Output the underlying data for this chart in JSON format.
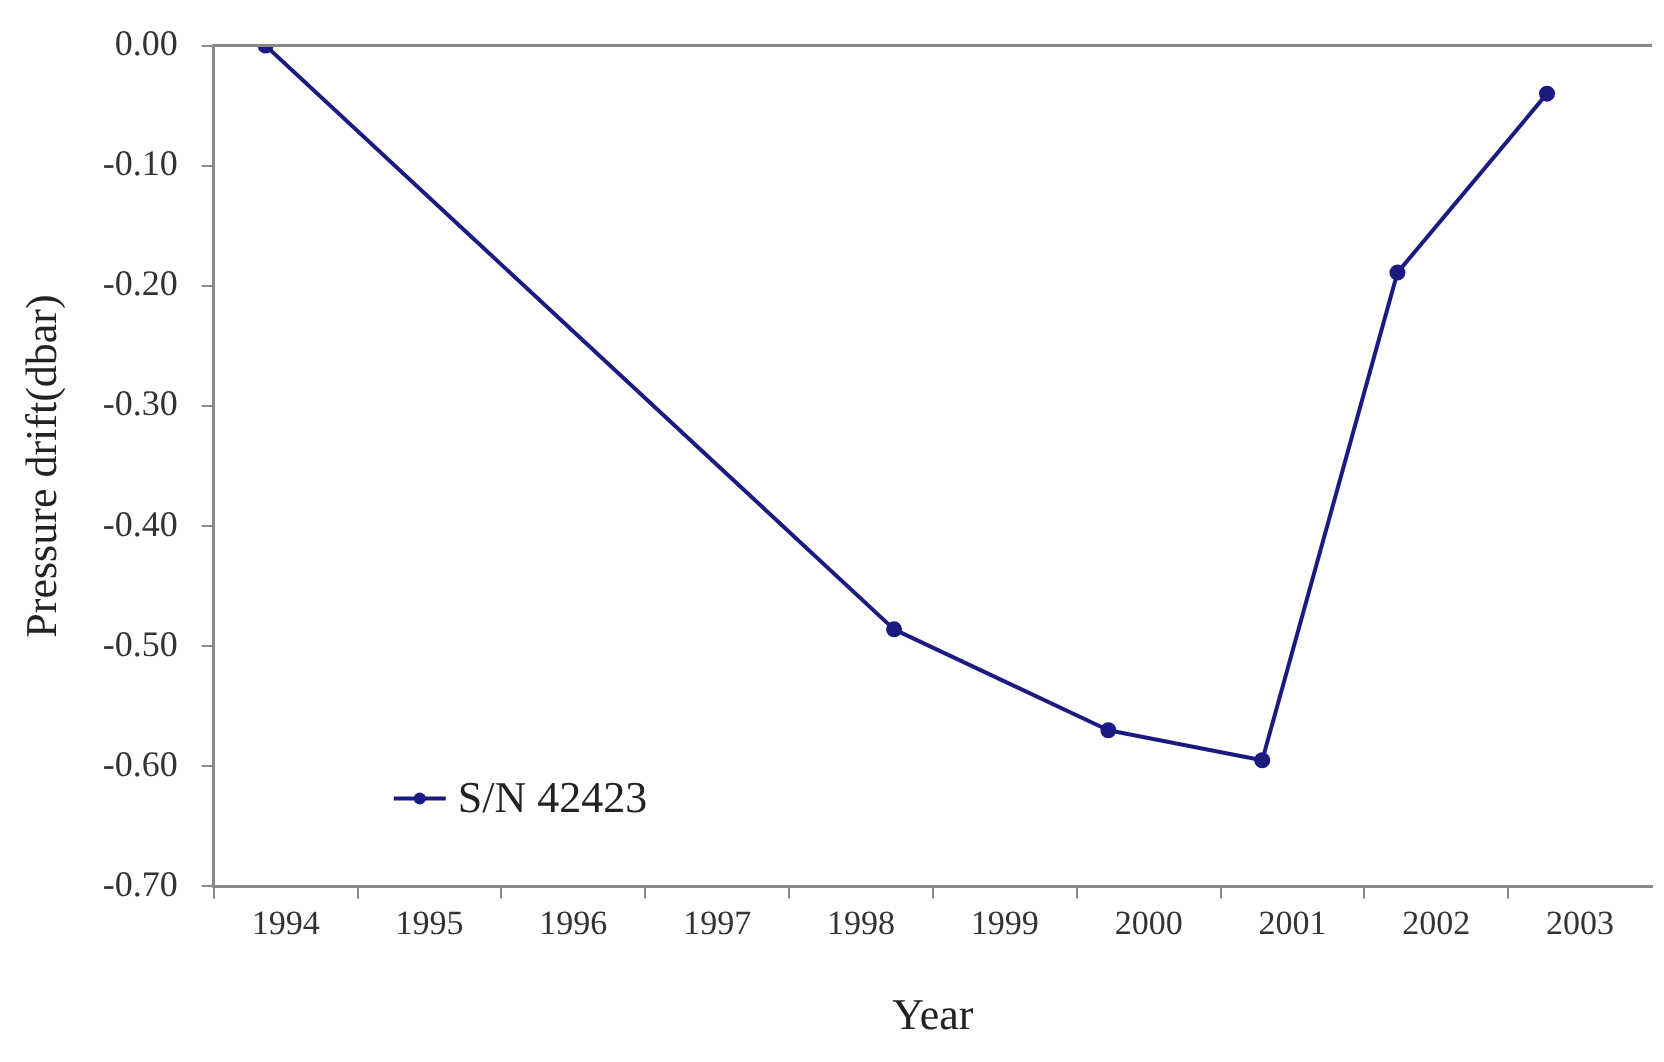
{
  "chart_data": {
    "type": "line",
    "xlabel": "Year",
    "ylabel": "Pressure drift(dbar)",
    "x": [
      1994.36,
      1998.73,
      2000.22,
      2001.29,
      2002.23,
      2003.27
    ],
    "series": [
      {
        "name": "S/N 42423",
        "color": "#1a1a80",
        "values": [
          0.0,
          -0.486,
          -0.57,
          -0.595,
          -0.189,
          -0.04
        ]
      }
    ],
    "xlim": [
      1994,
      2004
    ],
    "xticks": [
      {
        "value": 1994,
        "label": null
      },
      {
        "value": 1994.5,
        "label": "1994"
      },
      {
        "value": 1995,
        "label": null
      },
      {
        "value": 1995.5,
        "label": "1995"
      },
      {
        "value": 1996,
        "label": null
      },
      {
        "value": 1996.5,
        "label": "1996"
      },
      {
        "value": 1997,
        "label": null
      },
      {
        "value": 1997.5,
        "label": "1997"
      },
      {
        "value": 1998,
        "label": null
      },
      {
        "value": 1998.5,
        "label": "1998"
      },
      {
        "value": 1999,
        "label": null
      },
      {
        "value": 1999.5,
        "label": "1999"
      },
      {
        "value": 2000,
        "label": null
      },
      {
        "value": 2000.5,
        "label": "2000"
      },
      {
        "value": 2001,
        "label": null
      },
      {
        "value": 2001.5,
        "label": "2001"
      },
      {
        "value": 2002,
        "label": null
      },
      {
        "value": 2002.5,
        "label": "2002"
      },
      {
        "value": 2003,
        "label": null
      },
      {
        "value": 2003.5,
        "label": "2003"
      }
    ],
    "ylim": [
      -0.7,
      0
    ],
    "yticks": [
      {
        "value": 0,
        "label": "0.00"
      },
      {
        "value": -0.1,
        "label": "-0.10"
      },
      {
        "value": -0.2,
        "label": "-0.20"
      },
      {
        "value": -0.3,
        "label": "-0.30"
      },
      {
        "value": -0.4,
        "label": "-0.40"
      },
      {
        "value": -0.5,
        "label": "-0.50"
      },
      {
        "value": -0.6,
        "label": "-0.60"
      },
      {
        "value": -0.7,
        "label": "-0.70"
      }
    ],
    "grid": false,
    "legend": "bottom left",
    "marker": "circle",
    "line_style": "solid"
  }
}
